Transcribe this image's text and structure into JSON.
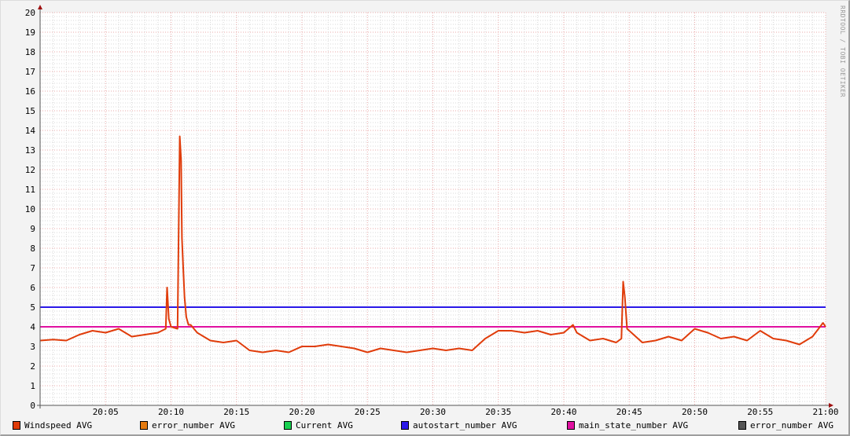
{
  "chart_data": {
    "type": "line",
    "watermark": "RRDTOOL / TOBI OETIKER",
    "xlim": [
      "20:00:00",
      "21:00:00"
    ],
    "ylim": [
      0,
      20
    ],
    "grid": true,
    "legend_placement": "bottom",
    "x_ticks": [
      "20:05",
      "20:10",
      "20:15",
      "20:20",
      "20:25",
      "20:30",
      "20:35",
      "20:40",
      "20:45",
      "20:50",
      "20:55",
      "21:00"
    ],
    "y_ticks": [
      "0",
      "1",
      "2",
      "3",
      "4",
      "5",
      "6",
      "7",
      "8",
      "9",
      "10",
      "11",
      "12",
      "13",
      "14",
      "15",
      "16",
      "17",
      "18",
      "19",
      "20"
    ],
    "legend": [
      {
        "name": "Windspeed AVG",
        "color": "#e03c0a"
      },
      {
        "name": "error_number AVG",
        "color": "#e47a10"
      },
      {
        "name": "Current AVG",
        "color": "#18d050"
      },
      {
        "name": "autostart_number AVG",
        "color": "#2a18e8"
      },
      {
        "name": "main_state_number AVG",
        "color": "#e010a0"
      },
      {
        "name": "error_number AVG",
        "color": "#555555"
      }
    ],
    "series": [
      {
        "name": "Windspeed AVG",
        "color": "#e03c0a",
        "x": [
          "20:00:00",
          "20:01:00",
          "20:02:00",
          "20:03:00",
          "20:04:00",
          "20:05:00",
          "20:06:00",
          "20:07:00",
          "20:08:00",
          "20:09:00",
          "20:09:36",
          "20:09:42",
          "20:09:50",
          "20:10:00",
          "20:10:30",
          "20:10:40",
          "20:10:46",
          "20:10:50",
          "20:10:56",
          "20:11:02",
          "20:11:10",
          "20:11:20",
          "20:11:30",
          "20:12:00",
          "20:13:00",
          "20:14:00",
          "20:15:00",
          "20:16:00",
          "20:17:00",
          "20:18:00",
          "20:19:00",
          "20:20:00",
          "20:21:00",
          "20:22:00",
          "20:23:00",
          "20:24:00",
          "20:25:00",
          "20:26:00",
          "20:27:00",
          "20:28:00",
          "20:29:00",
          "20:30:00",
          "20:31:00",
          "20:32:00",
          "20:33:00",
          "20:34:00",
          "20:35:00",
          "20:36:00",
          "20:37:00",
          "20:38:00",
          "20:39:00",
          "20:40:00",
          "20:40:42",
          "20:41:00",
          "20:42:00",
          "20:43:00",
          "20:44:00",
          "20:44:24",
          "20:44:32",
          "20:44:40",
          "20:44:50",
          "20:45:00",
          "20:46:00",
          "20:47:00",
          "20:48:00",
          "20:49:00",
          "20:50:00",
          "20:51:00",
          "20:52:00",
          "20:53:00",
          "20:54:00",
          "20:55:00",
          "20:56:00",
          "20:57:00",
          "20:58:00",
          "20:59:00",
          "20:59:48",
          "21:00:00"
        ],
        "values": [
          3.3,
          3.35,
          3.3,
          3.6,
          3.8,
          3.7,
          3.9,
          3.5,
          3.6,
          3.7,
          3.9,
          6.0,
          4.4,
          4.0,
          3.9,
          13.7,
          12.5,
          8.5,
          7.0,
          5.5,
          4.5,
          4.1,
          4.1,
          3.7,
          3.3,
          3.2,
          3.3,
          2.8,
          2.7,
          2.8,
          2.7,
          3.0,
          3.0,
          3.1,
          3.0,
          2.9,
          2.7,
          2.9,
          2.8,
          2.7,
          2.8,
          2.9,
          2.8,
          2.9,
          2.8,
          3.4,
          3.8,
          3.8,
          3.7,
          3.8,
          3.6,
          3.7,
          4.1,
          3.7,
          3.3,
          3.4,
          3.2,
          3.4,
          6.3,
          5.5,
          3.9,
          3.8,
          3.2,
          3.3,
          3.5,
          3.3,
          3.9,
          3.7,
          3.4,
          3.5,
          3.3,
          3.8,
          3.4,
          3.3,
          3.1,
          3.5,
          4.2,
          4.0
        ]
      },
      {
        "name": "autostart_number AVG",
        "color": "#2a18e8",
        "x": [
          "20:00:00",
          "21:00:00"
        ],
        "values": [
          5,
          5
        ]
      },
      {
        "name": "main_state_number AVG",
        "color": "#e010a0",
        "x": [
          "20:00:00",
          "21:00:00"
        ],
        "values": [
          4,
          4
        ]
      }
    ]
  }
}
